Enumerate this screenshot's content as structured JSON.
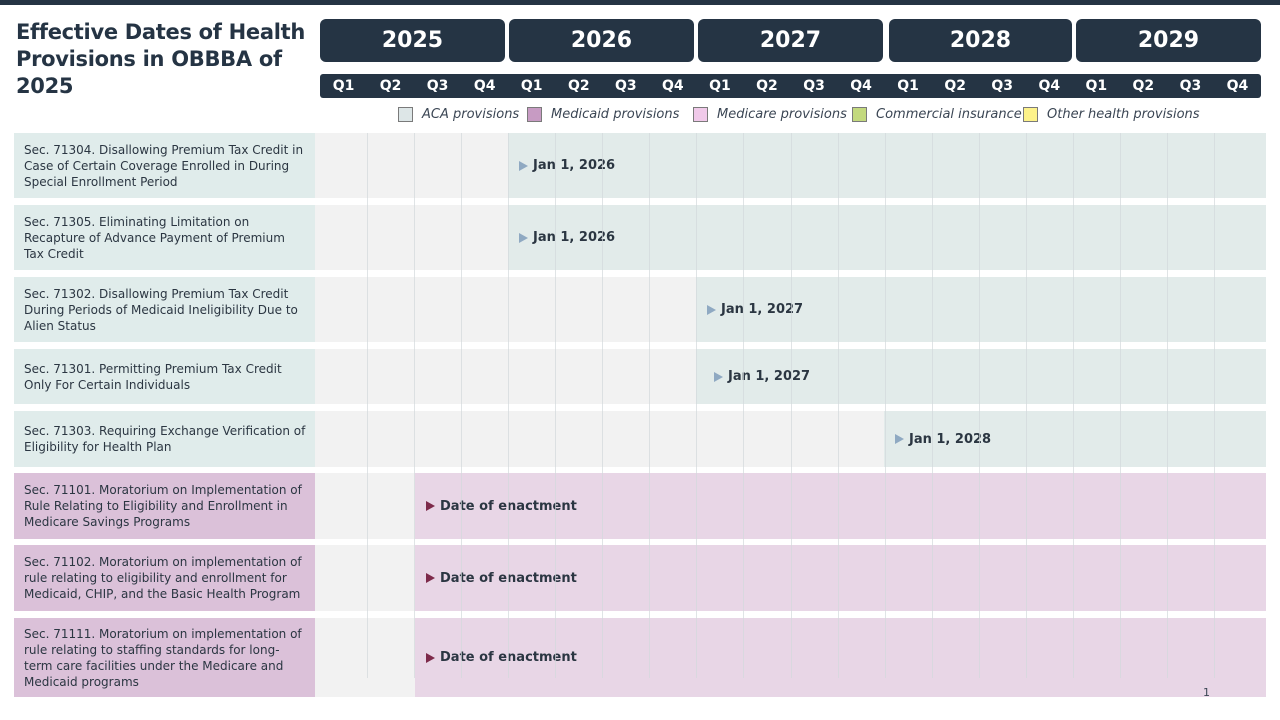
{
  "title": "Effective Dates of Health Provisions in OBBBA of 2025",
  "page_number": "1",
  "colors": {
    "header": "#253444",
    "aca_label": "#e0eceb",
    "aca_bar": "#e2ebea",
    "aca_marker": "#8fa9c2",
    "medicaid_label": "#dbc1d9",
    "medicaid_bar": "#e8d6e6",
    "medicaid_marker": "#7d2a4a",
    "row_bg": "#f2f2f2"
  },
  "chart_data": {
    "type": "timeline",
    "title": "Effective Dates of Health Provisions in OBBBA of 2025",
    "years": [
      "2025",
      "2026",
      "2027",
      "2028",
      "2029"
    ],
    "quarters": [
      "Q1",
      "Q2",
      "Q3",
      "Q4"
    ],
    "legend": [
      {
        "label": "ACA provisions",
        "color": "#dde6e7"
      },
      {
        "label": "Medicaid provisions",
        "color": "#c79bc3"
      },
      {
        "label": "Medicare provisions",
        "color": "#f0c9e9"
      },
      {
        "label": "Commercial insurance",
        "color": "#c3d97e"
      },
      {
        "label": "Other health provisions",
        "color": "#fdf28a"
      }
    ],
    "provisions": [
      {
        "label": "Sec. 71304. Disallowing Premium Tax Credit in Case of Certain Coverage Enrolled in During Special Enrollment Period",
        "category": "ACA provisions",
        "start": "2026-01-01",
        "marker": "Jan 1, 2026"
      },
      {
        "label": "Sec. 71305. Eliminating Limitation on Recapture of Advance Payment of Premium Tax Credit",
        "category": "ACA provisions",
        "start": "2026-01-01",
        "marker": "Jan 1, 2026"
      },
      {
        "label": "Sec. 71302. Disallowing Premium Tax Credit During Periods of Medicaid Ineligibility Due to Alien Status",
        "category": "ACA provisions",
        "start": "2027-01-01",
        "marker": "Jan 1, 2027"
      },
      {
        "label": "Sec. 71301. Permitting Premium Tax Credit Only For Certain Individuals",
        "category": "ACA provisions",
        "start": "2027-01-01",
        "marker": "Jan 1, 2027"
      },
      {
        "label": "Sec. 71303. Requiring Exchange Verification of Eligibility for Health Plan",
        "category": "ACA provisions",
        "start": "2028-01-01",
        "marker": "Jan 1, 2028"
      },
      {
        "label": "Sec. 71101. Moratorium on Implementation of Rule Relating to Eligibility and Enrollment in Medicare Savings Programs",
        "category": "Medicaid provisions",
        "start": "2025-07-04",
        "marker": "Date of enactment"
      },
      {
        "label": "Sec. 71102. Moratorium on implementation of rule relating to eligibility and enrollment for Medicaid, CHIP, and the Basic Health Program",
        "category": "Medicaid provisions",
        "start": "2025-07-04",
        "marker": "Date of enactment"
      },
      {
        "label": "Sec. 71111. Moratorium on implementation of rule relating to staffing standards for long-term care facilities under the Medicare and Medicaid programs",
        "category": "Medicaid provisions",
        "start": "2025-07-04",
        "marker": "Date of enactment"
      }
    ]
  }
}
